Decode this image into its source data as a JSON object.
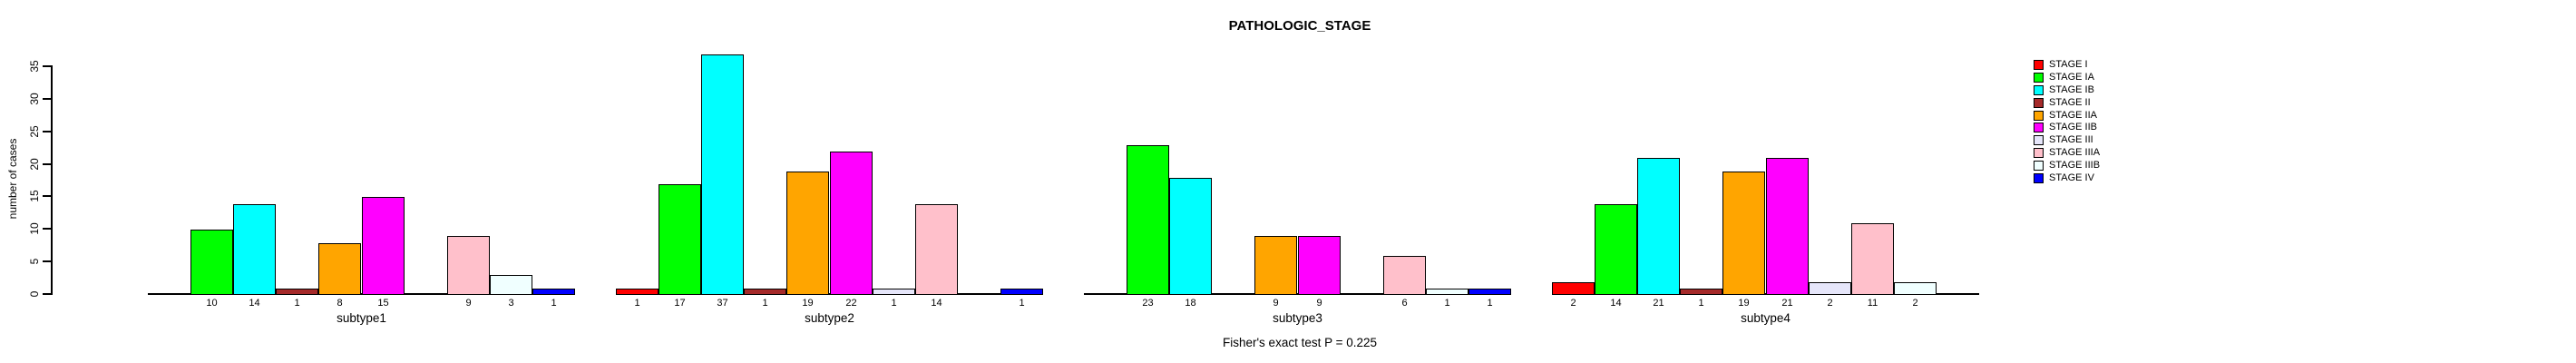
{
  "title": "PATHOLOGIC_STAGE",
  "chart_data": {
    "type": "bar",
    "title": "PATHOLOGIC_STAGE",
    "xlabel": "",
    "ylabel": "number of cases",
    "ylim": [
      0,
      35
    ],
    "yticks": [
      0,
      5,
      10,
      15,
      20,
      25,
      30,
      35
    ],
    "grid": false,
    "legend_position": "right",
    "stages": [
      {
        "label": "STAGE I",
        "color": "#FF0000"
      },
      {
        "label": "STAGE IA",
        "color": "#00FF00"
      },
      {
        "label": "STAGE IB",
        "color": "#00FFFF"
      },
      {
        "label": "STAGE II",
        "color": "#A52A2A"
      },
      {
        "label": "STAGE IIA",
        "color": "#FFA500"
      },
      {
        "label": "STAGE IIB",
        "color": "#FF00FF"
      },
      {
        "label": "STAGE III",
        "color": "#E6E6FA"
      },
      {
        "label": "STAGE IIIA",
        "color": "#FFC0CB"
      },
      {
        "label": "STAGE IIIB",
        "color": "#F0FFFF"
      },
      {
        "label": "STAGE IV",
        "color": "#0000FF"
      }
    ],
    "groups": [
      {
        "label": "subtype1",
        "values": [
          0,
          10,
          14,
          1,
          8,
          15,
          0,
          9,
          3,
          1
        ]
      },
      {
        "label": "subtype2",
        "values": [
          1,
          17,
          37,
          1,
          19,
          22,
          1,
          14,
          0,
          1
        ]
      },
      {
        "label": "subtype3",
        "values": [
          0,
          23,
          18,
          0,
          9,
          9,
          0,
          6,
          1,
          1
        ]
      },
      {
        "label": "subtype4",
        "values": [
          2,
          14,
          21,
          1,
          19,
          21,
          2,
          11,
          2,
          0
        ]
      }
    ],
    "annotation": "Fisher's exact test P = 0.225"
  }
}
